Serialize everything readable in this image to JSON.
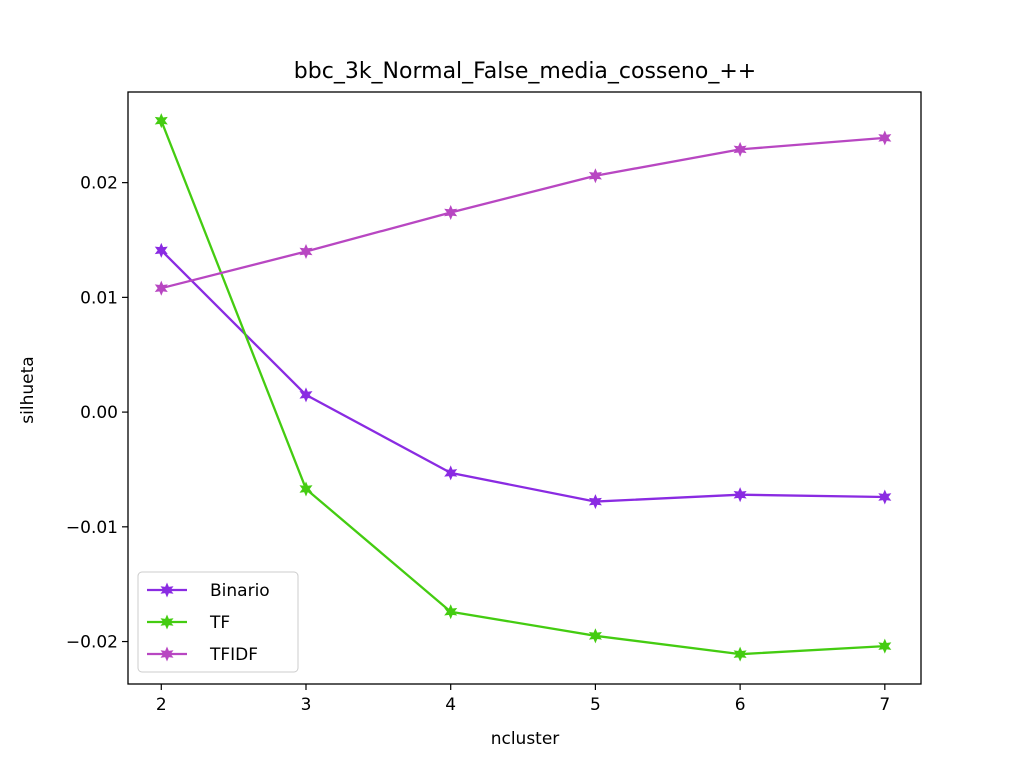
{
  "chart_data": {
    "type": "line",
    "title": "bbc_3k_Normal_False_media_cosseno_++",
    "xlabel": "ncluster",
    "ylabel": "silhueta",
    "x": [
      2,
      3,
      4,
      5,
      6,
      7
    ],
    "xlim": [
      1.77,
      7.25
    ],
    "ylim": [
      -0.0237,
      0.0279
    ],
    "x_ticks": [
      2,
      3,
      4,
      5,
      6,
      7
    ],
    "x_tick_labels": [
      "2",
      "3",
      "4",
      "5",
      "6",
      "7"
    ],
    "y_ticks": [
      -0.02,
      -0.01,
      0.0,
      0.01,
      0.02
    ],
    "y_tick_labels": [
      "−0.02",
      "−0.01",
      "0.00",
      "0.01",
      "0.02"
    ],
    "grid": false,
    "legend_position": "lower-left",
    "marker": "star",
    "series": [
      {
        "name": "Binario",
        "color": "#8a2be2",
        "values": [
          0.0141,
          0.0015,
          -0.0053,
          -0.0078,
          -0.0072,
          -0.0074
        ]
      },
      {
        "name": "TF",
        "color": "#44cc11",
        "values": [
          0.0254,
          -0.0067,
          -0.0174,
          -0.0195,
          -0.0211,
          -0.0204
        ]
      },
      {
        "name": "TFIDF",
        "color": "#b847c2",
        "values": [
          0.0108,
          0.014,
          0.0174,
          0.0206,
          0.0229,
          0.0239
        ]
      }
    ]
  }
}
